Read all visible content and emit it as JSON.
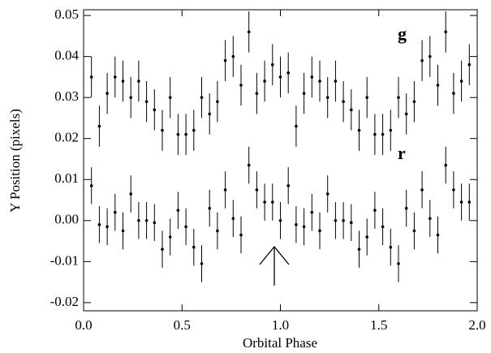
{
  "chart_data": {
    "type": "errorbar",
    "xlabel": "Orbital Phase",
    "ylabel": "Y Position (pixels)",
    "x": [
      0.04,
      0.08,
      0.12,
      0.16,
      0.2,
      0.24,
      0.28,
      0.32,
      0.36,
      0.4,
      0.44,
      0.48,
      0.52,
      0.56,
      0.6,
      0.64,
      0.68,
      0.72,
      0.76,
      0.8,
      0.84,
      0.88,
      0.92,
      0.96,
      1.0,
      1.04,
      1.08,
      1.12,
      1.16,
      1.2,
      1.24,
      1.28,
      1.32,
      1.36,
      1.4,
      1.44,
      1.48,
      1.52,
      1.56,
      1.6,
      1.64,
      1.68,
      1.72,
      1.76,
      1.8,
      1.84,
      1.88,
      1.92,
      1.96
    ],
    "series": [
      {
        "name": "g",
        "color": "#000000",
        "error": 0.005,
        "values": [
          0.035,
          0.023,
          0.031,
          0.035,
          0.034,
          0.03,
          0.034,
          0.029,
          0.027,
          0.022,
          0.03,
          0.021,
          0.021,
          0.022,
          0.03,
          0.026,
          0.029,
          0.039,
          0.04,
          0.033,
          0.046,
          0.031,
          0.034,
          0.038,
          0.035,
          0.036,
          0.023,
          0.031,
          0.035,
          0.034,
          0.03,
          0.034,
          0.029,
          0.027,
          0.022,
          0.03,
          0.021,
          0.021,
          0.022,
          0.03,
          0.026,
          0.029,
          0.039,
          0.04,
          0.033,
          0.046,
          0.031,
          0.034,
          0.038
        ]
      },
      {
        "name": "r",
        "color": "#000000",
        "error": 0.0045,
        "values": [
          0.0085,
          -0.001,
          -0.0015,
          0.002,
          -0.0025,
          0.0065,
          0.0,
          0.0,
          -0.0005,
          -0.007,
          -0.004,
          0.0025,
          -0.0015,
          -0.0065,
          -0.0105,
          0.003,
          -0.0025,
          0.0075,
          0.0005,
          -0.0035,
          0.0135,
          0.0075,
          0.0045,
          0.0045,
          0.0,
          0.0085,
          -0.001,
          -0.0015,
          0.002,
          -0.0025,
          0.0065,
          0.0,
          0.0,
          -0.0005,
          -0.007,
          -0.004,
          0.0025,
          -0.0015,
          -0.0065,
          -0.0105,
          0.003,
          -0.0025,
          0.0075,
          0.0005,
          -0.0035,
          0.0135,
          0.0075,
          0.0045,
          0.0045
        ]
      }
    ],
    "xlim": [
      0,
      2
    ],
    "ylim": [
      -0.022,
      0.0514
    ],
    "xticks": [
      {
        "value": 0,
        "label": "0.0"
      },
      0.5,
      {
        "value": 1,
        "label": "1.0"
      },
      1.5,
      {
        "value": 2,
        "label": "2.0"
      }
    ],
    "yticks": [
      -0.02,
      -0.01,
      {
        "value": 0,
        "label": "0.00"
      },
      0.01,
      0.02,
      0.03,
      0.04,
      0.05
    ],
    "grid": false
  }
}
